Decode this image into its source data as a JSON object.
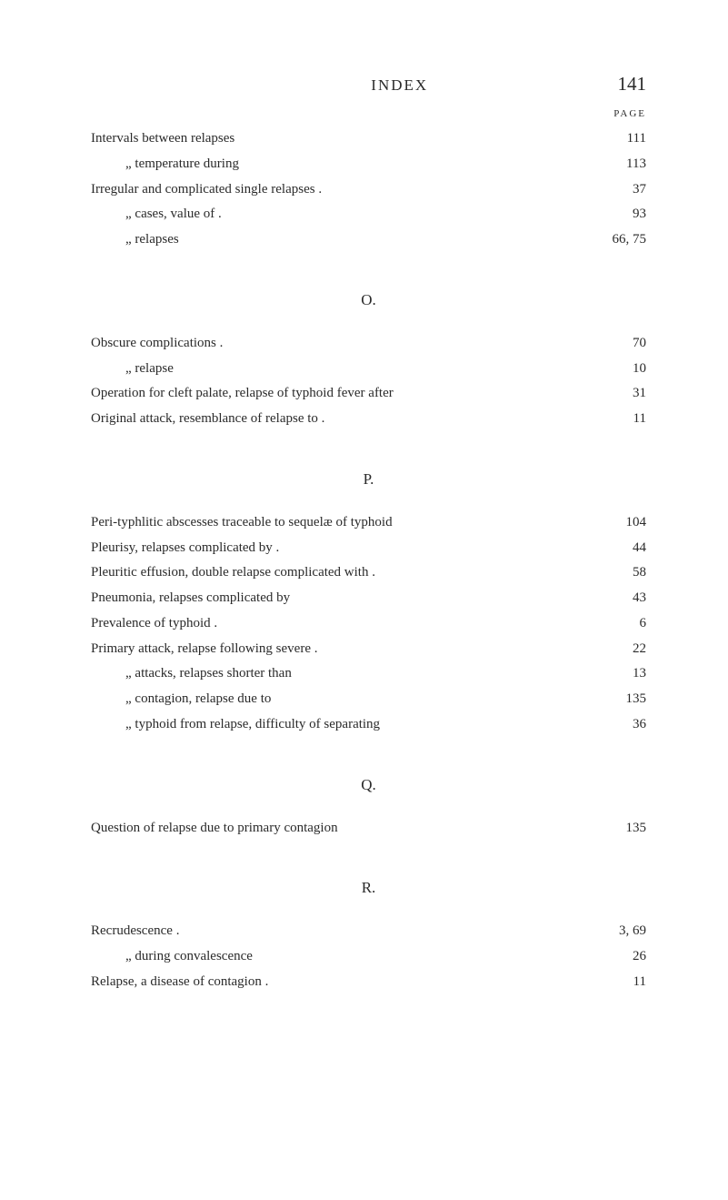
{
  "header": {
    "index_label": "INDEX",
    "page_number": "141",
    "page_col_header": "PAGE"
  },
  "section_i": {
    "entries": [
      {
        "text": "Intervals between relapses",
        "page": "111",
        "indent": false
      },
      {
        "text": "„       temperature during",
        "page": "113",
        "indent": true
      },
      {
        "text": "Irregular and complicated single relapses .",
        "page": "37",
        "indent": false
      },
      {
        "text": "„     cases, value of .",
        "page": "93",
        "indent": true
      },
      {
        "text": "„     relapses",
        "page": "66, 75",
        "indent": true
      }
    ]
  },
  "section_o": {
    "letter": "O.",
    "entries": [
      {
        "text": "Obscure complications .",
        "page": "70",
        "indent": false
      },
      {
        "text": "„     relapse",
        "page": "10",
        "indent": true
      },
      {
        "text": "Operation for cleft palate, relapse of typhoid fever after",
        "page": "31",
        "indent": false
      },
      {
        "text": "Original attack, resemblance of relapse to .",
        "page": "11",
        "indent": false
      }
    ]
  },
  "section_p": {
    "letter": "P.",
    "entries": [
      {
        "text": "Peri-typhlitic abscesses traceable to sequelæ of typhoid",
        "page": "104",
        "indent": false
      },
      {
        "text": "Pleurisy, relapses complicated by .",
        "page": "44",
        "indent": false
      },
      {
        "text": "Pleuritic effusion, double relapse complicated with .",
        "page": "58",
        "indent": false
      },
      {
        "text": "Pneumonia, relapses complicated by",
        "page": "43",
        "indent": false
      },
      {
        "text": "Prevalence of typhoid .",
        "page": "6",
        "indent": false
      },
      {
        "text": "Primary attack, relapse following severe .",
        "page": "22",
        "indent": false
      },
      {
        "text": "„     attacks, relapses shorter than",
        "page": "13",
        "indent": true
      },
      {
        "text": "„     contagion, relapse due to",
        "page": "135",
        "indent": true
      },
      {
        "text": "„     typhoid from relapse, difficulty of separating",
        "page": "36",
        "indent": true
      }
    ]
  },
  "section_q": {
    "letter": "Q.",
    "entries": [
      {
        "text": "Question of relapse due to primary contagion",
        "page": "135",
        "indent": false
      }
    ]
  },
  "section_r": {
    "letter": "R.",
    "entries": [
      {
        "text": "Recrudescence .",
        "page": "3, 69",
        "indent": false
      },
      {
        "text": "„          during convalescence",
        "page": "26",
        "indent": true
      },
      {
        "text": "Relapse, a disease of contagion  .",
        "page": "11",
        "indent": false
      }
    ]
  }
}
